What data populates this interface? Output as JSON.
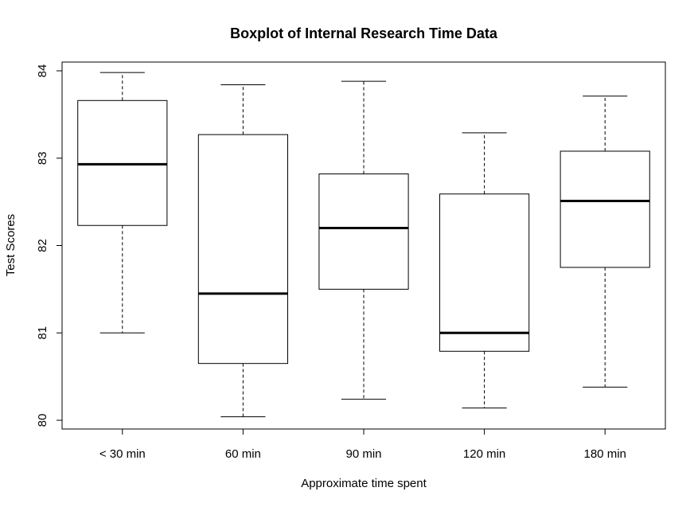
{
  "chart_data": {
    "type": "boxplot",
    "title": "Boxplot of Internal Research Time Data",
    "xlabel": "Approximate time spent",
    "ylabel": "Test Scores",
    "ylim": [
      79.9,
      84.1
    ],
    "yticks": [
      80,
      81,
      82,
      83,
      84
    ],
    "categories": [
      "< 30 min",
      "60 min",
      "90 min",
      "120 min",
      "180 min"
    ],
    "boxes": [
      {
        "category": "< 30 min",
        "min": 81.0,
        "q1": 82.23,
        "median": 82.93,
        "q3": 83.66,
        "max": 83.98
      },
      {
        "category": "60 min",
        "min": 80.04,
        "q1": 80.65,
        "median": 81.45,
        "q3": 83.27,
        "max": 83.84
      },
      {
        "category": "90 min",
        "min": 80.24,
        "q1": 81.5,
        "median": 82.2,
        "q3": 82.82,
        "max": 83.88
      },
      {
        "category": "120 min",
        "min": 80.14,
        "q1": 80.79,
        "median": 81.0,
        "q3": 82.59,
        "max": 83.29
      },
      {
        "category": "180 min",
        "min": 80.38,
        "q1": 81.75,
        "median": 82.51,
        "q3": 83.08,
        "max": 83.71
      }
    ],
    "grid": false,
    "legend": "none"
  }
}
